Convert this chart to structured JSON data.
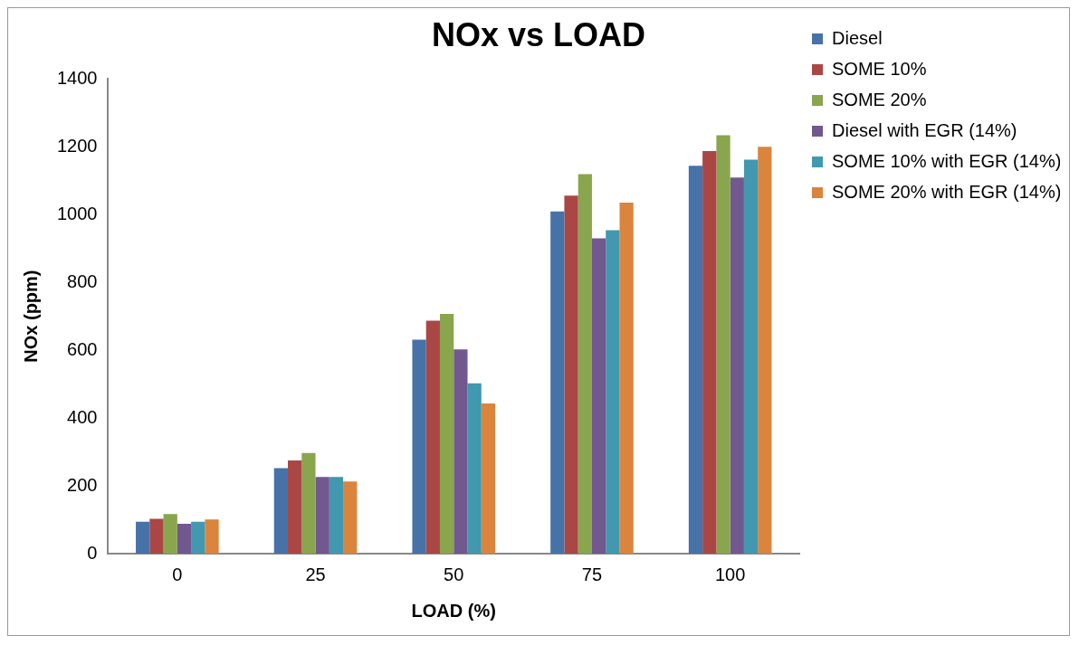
{
  "chart_data": {
    "type": "bar",
    "title": "NOx vs LOAD",
    "xlabel": "LOAD (%)",
    "ylabel": "NOx (ppm)",
    "categories": [
      "0",
      "25",
      "50",
      "75",
      "100"
    ],
    "series": [
      {
        "name": "Diesel",
        "color": "#4672a8",
        "values": [
          94,
          252,
          631,
          1009,
          1144
        ]
      },
      {
        "name": "SOME 10%",
        "color": "#aa4744",
        "values": [
          103,
          275,
          687,
          1056,
          1187
        ]
      },
      {
        "name": "SOME 20%",
        "color": "#89a54e",
        "values": [
          117,
          297,
          707,
          1119,
          1234
        ]
      },
      {
        "name": "Diesel with EGR (14%)",
        "color": "#71588f",
        "values": [
          88,
          226,
          602,
          930,
          1109
        ]
      },
      {
        "name": "SOME 10% with EGR (14%)",
        "color": "#4198af",
        "values": [
          94,
          226,
          502,
          954,
          1162
        ]
      },
      {
        "name": "SOME 20% with EGR (14%)",
        "color": "#db843d",
        "values": [
          101,
          213,
          443,
          1035,
          1200
        ]
      }
    ],
    "ylim": [
      0,
      1400
    ],
    "yticks": [
      0,
      200,
      400,
      600,
      800,
      1000,
      1200,
      1400
    ],
    "grid": false,
    "legend": "top right"
  }
}
